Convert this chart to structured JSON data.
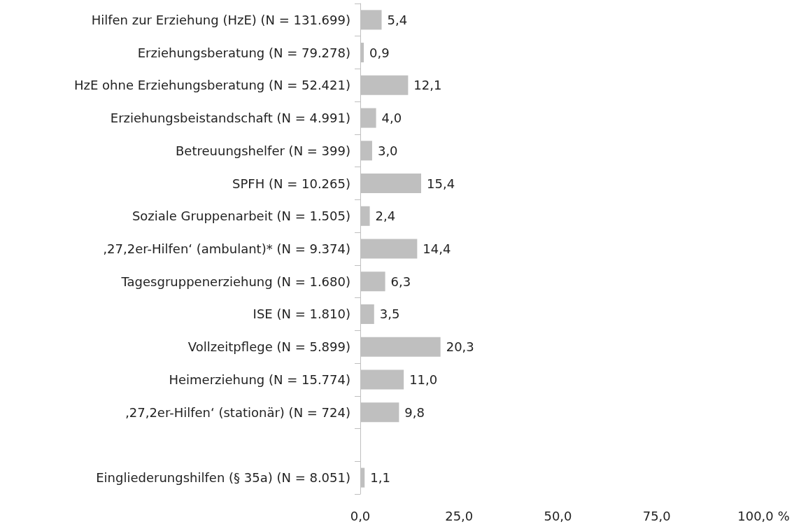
{
  "chart_data": {
    "type": "bar",
    "orientation": "horizontal",
    "categories": [
      "Hilfen zur Erziehung (HzE) (N = 131.699)",
      "Erziehungsberatung (N = 79.278)",
      "HzE ohne Erziehungsberatung (N = 52.421)",
      "Erziehungsbeistandschaft (N = 4.991)",
      "Betreuungshelfer (N = 399)",
      "SPFH (N = 10.265)",
      "Soziale Gruppenarbeit (N = 1.505)",
      "‚27,2er-Hilfen‘ (ambulant)* (N = 9.374)",
      "Tagesgruppenerziehung (N = 1.680)",
      "ISE (N = 1.810)",
      "Vollzeitpflege (N = 5.899)",
      "Heimerziehung (N = 15.774)",
      "‚27,2er-Hilfen‘ (stationär) (N = 724)",
      null,
      "Eingliederungshilfen (§ 35a) (N = 8.051)"
    ],
    "values": [
      5.4,
      0.9,
      12.1,
      4.0,
      3.0,
      15.4,
      2.4,
      14.4,
      6.3,
      3.5,
      20.3,
      11.0,
      9.8,
      null,
      1.1
    ],
    "value_labels": [
      "5,4",
      "0,9",
      "12,1",
      "4,0",
      "3,0",
      "15,4",
      "2,4",
      "14,4",
      "6,3",
      "3,5",
      "20,3",
      "11,0",
      "9,8",
      null,
      "1,1"
    ],
    "color": "#bfbfbf",
    "xlabel": "%",
    "xlim": [
      0,
      100
    ],
    "xticks": [
      {
        "value": 0,
        "label": "0,0"
      },
      {
        "value": 25,
        "label": "25,0"
      },
      {
        "value": 50,
        "label": "50,0"
      },
      {
        "value": 75,
        "label": "75,0"
      },
      {
        "value": 100,
        "label": "100,0"
      }
    ]
  }
}
